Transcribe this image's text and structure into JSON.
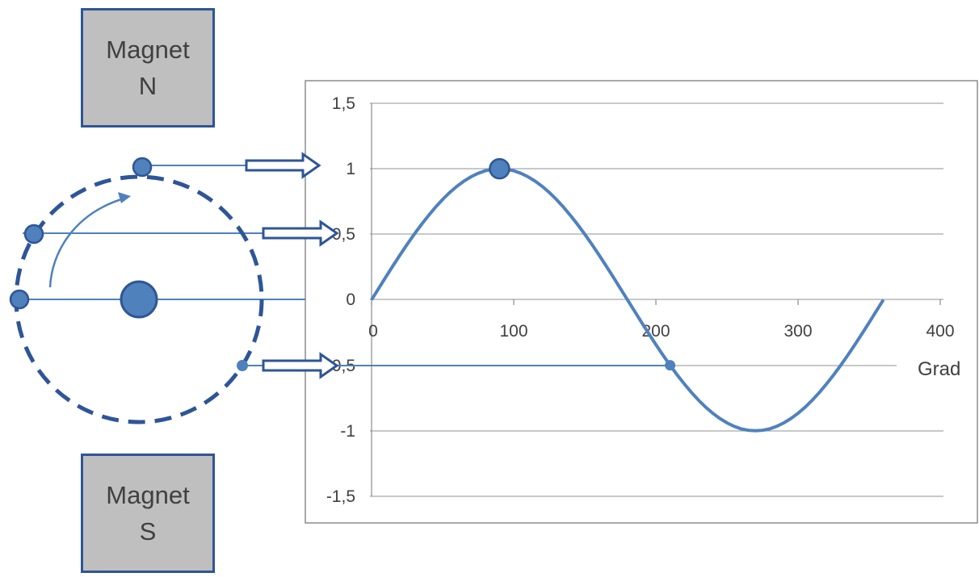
{
  "magnets": {
    "north": {
      "line1": "Magnet",
      "line2": "N"
    },
    "south": {
      "line1": "Magnet",
      "line2": "S"
    }
  },
  "colors": {
    "accent": "#4f81bd",
    "dark_blue": "#2e5597",
    "magnet_fill": "#bfbfbf",
    "gridline": "#a6a6a6",
    "text": "#404040"
  },
  "chart_data": {
    "type": "line",
    "title": "",
    "xlabel": "Grad",
    "ylabel": "",
    "xlim": [
      0,
      400
    ],
    "ylim": [
      -1.5,
      1.5
    ],
    "x_ticks": [
      0,
      100,
      200,
      300,
      400
    ],
    "x_tick_labels": [
      "0",
      "100",
      "200",
      "300",
      "400"
    ],
    "y_ticks": [
      1.5,
      1,
      0.5,
      0,
      -0.5,
      -1,
      -1.5
    ],
    "y_tick_labels": [
      "1,5",
      "1",
      "0,5",
      "0",
      "-0,5",
      "-1",
      "-1,5"
    ],
    "grid": true,
    "series": [
      {
        "function": "sin",
        "x_start": 0,
        "x_end": 360,
        "step": 5
      }
    ],
    "highlight_points": [
      {
        "x": 90,
        "y": 1
      },
      {
        "x": 210,
        "y": -0.5
      }
    ]
  }
}
